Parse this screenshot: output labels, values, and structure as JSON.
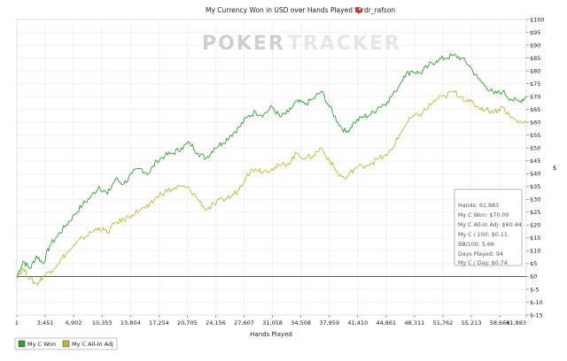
{
  "chart_data": {
    "type": "line",
    "title_prefix": "My Currency Won in USD over Hands Played for",
    "player": "dr_rafson",
    "watermark": {
      "part1": "PO",
      "part2": "KER",
      "part3": "TRACKER"
    },
    "xlabel": "Hands Played",
    "ylabel": "$",
    "xlim": [
      1,
      61883
    ],
    "ylim": [
      -15,
      100
    ],
    "x_ticks": [
      1,
      3451,
      6902,
      10353,
      13804,
      17254,
      20705,
      24156,
      27607,
      31058,
      34508,
      37959,
      41410,
      44861,
      48311,
      51762,
      55213,
      58664,
      61883
    ],
    "x_tick_labels": [
      "1",
      "3,451",
      "6,902",
      "10,353",
      "13,804",
      "17,254",
      "20,705",
      "24,156",
      "27,607",
      "31,058",
      "34,508",
      "37,959",
      "41,410",
      "44,861",
      "48,311",
      "51,762",
      "55,213",
      "58,664",
      "61,883"
    ],
    "y_ticks": [
      100,
      95,
      90,
      85,
      80,
      75,
      70,
      65,
      60,
      55,
      50,
      45,
      40,
      35,
      30,
      25,
      20,
      15,
      10,
      5,
      0,
      -5,
      -10,
      -15
    ],
    "y_tick_labels": [
      "$100",
      "$95",
      "$90",
      "$85",
      "$80",
      "$75",
      "$70",
      "$65",
      "$60",
      "$55",
      "$50",
      "$45",
      "$40",
      "$35",
      "$30",
      "$25",
      "$20",
      "$15",
      "$10",
      "$5",
      "$0",
      "$-5",
      "$-10",
      "$-15"
    ],
    "grid": true,
    "legend_position": "bottom-left",
    "series": [
      {
        "name": "My C Won",
        "color": "#2ca02c",
        "x": [
          1,
          800,
          1600,
          2400,
          3200,
          4000,
          5000,
          6000,
          7000,
          8000,
          9000,
          10000,
          11000,
          12000,
          13000,
          14000,
          15000,
          16000,
          17000,
          18000,
          19000,
          20000,
          21000,
          22000,
          23000,
          24000,
          25000,
          26000,
          27000,
          28000,
          29000,
          30000,
          31000,
          32000,
          33000,
          34000,
          35000,
          36000,
          37000,
          38000,
          39000,
          40000,
          41000,
          42000,
          43000,
          44000,
          45000,
          46000,
          47000,
          48000,
          49000,
          50000,
          51000,
          52000,
          53000,
          54000,
          55000,
          56000,
          57000,
          58000,
          59000,
          60000,
          61000,
          61883
        ],
        "y": [
          0,
          6,
          3,
          8,
          5,
          12,
          16,
          20,
          24,
          28,
          31,
          35,
          32,
          38,
          36,
          40,
          42,
          40,
          45,
          47,
          48,
          50,
          52,
          48,
          46,
          50,
          52,
          55,
          58,
          62,
          64,
          63,
          66,
          62,
          64,
          68,
          67,
          69,
          72,
          66,
          60,
          56,
          60,
          62,
          63,
          66,
          68,
          72,
          78,
          80,
          79,
          82,
          84,
          85,
          86,
          85,
          82,
          77,
          74,
          71,
          72,
          69,
          68,
          70
        ]
      },
      {
        "name": "My C All-In Adj",
        "color": "#bcb832",
        "x": [
          1,
          800,
          1600,
          2400,
          3200,
          4000,
          5000,
          6000,
          7000,
          8000,
          9000,
          10000,
          11000,
          12000,
          13000,
          14000,
          15000,
          16000,
          17000,
          18000,
          19000,
          20000,
          21000,
          22000,
          23000,
          24000,
          25000,
          26000,
          27000,
          28000,
          29000,
          30000,
          31000,
          32000,
          33000,
          34000,
          35000,
          36000,
          37000,
          38000,
          39000,
          40000,
          41000,
          42000,
          43000,
          44000,
          45000,
          46000,
          47000,
          48000,
          49000,
          50000,
          51000,
          52000,
          53000,
          54000,
          55000,
          56000,
          57000,
          58000,
          59000,
          60000,
          61000,
          61883
        ],
        "y": [
          0,
          3,
          -1,
          -3,
          0,
          2,
          5,
          9,
          12,
          15,
          17,
          19,
          17,
          21,
          22,
          24,
          26,
          27,
          31,
          33,
          34,
          35,
          34,
          30,
          26,
          28,
          30,
          31,
          34,
          40,
          42,
          41,
          42,
          43,
          44,
          48,
          46,
          47,
          50,
          45,
          40,
          38,
          42,
          43,
          44,
          46,
          47,
          52,
          58,
          62,
          63,
          66,
          69,
          70,
          72,
          70,
          68,
          66,
          65,
          64,
          66,
          62,
          60,
          60
        ]
      }
    ],
    "stats_box": {
      "lines": [
        "Hands: 61,883",
        "My C Won: $70.00",
        "My C All-In Adj: $60.44",
        "My C / 100: $0.11",
        "BB/100: 5.66",
        "Days Played: 94",
        "My C / Day: $0.74"
      ]
    }
  }
}
